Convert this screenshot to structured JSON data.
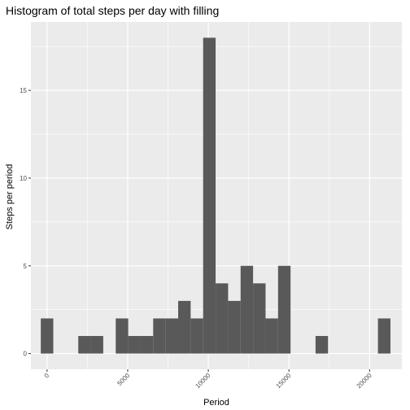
{
  "chart_data": {
    "type": "bar",
    "title": "Histogram of total steps per day with filling",
    "xlabel": "Period",
    "ylabel": "Steps per period",
    "bin_width": 774,
    "x_ticks": [
      0,
      5000,
      10000,
      15000,
      20000
    ],
    "y_ticks": [
      0,
      5,
      10,
      15
    ],
    "xlim": [
      -1000,
      22000
    ],
    "ylim": [
      -0.9,
      18.9
    ],
    "grid": true,
    "bar_color": "#595959",
    "panel_color": "#ebebeb",
    "bins": [
      {
        "x": 0,
        "count": 2
      },
      {
        "x": 774,
        "count": 0
      },
      {
        "x": 1549,
        "count": 0
      },
      {
        "x": 2323,
        "count": 1
      },
      {
        "x": 3097,
        "count": 1
      },
      {
        "x": 3871,
        "count": 0
      },
      {
        "x": 4646,
        "count": 2
      },
      {
        "x": 5420,
        "count": 1
      },
      {
        "x": 6194,
        "count": 1
      },
      {
        "x": 6968,
        "count": 2
      },
      {
        "x": 7743,
        "count": 2
      },
      {
        "x": 8517,
        "count": 3
      },
      {
        "x": 9291,
        "count": 2
      },
      {
        "x": 10065,
        "count": 18
      },
      {
        "x": 10840,
        "count": 4
      },
      {
        "x": 11614,
        "count": 3
      },
      {
        "x": 12388,
        "count": 5
      },
      {
        "x": 13162,
        "count": 4
      },
      {
        "x": 13937,
        "count": 2
      },
      {
        "x": 14711,
        "count": 5
      },
      {
        "x": 15485,
        "count": 0
      },
      {
        "x": 16259,
        "count": 0
      },
      {
        "x": 17034,
        "count": 1
      },
      {
        "x": 17808,
        "count": 0
      },
      {
        "x": 18582,
        "count": 0
      },
      {
        "x": 19356,
        "count": 0
      },
      {
        "x": 20131,
        "count": 0
      },
      {
        "x": 20905,
        "count": 2
      }
    ]
  }
}
